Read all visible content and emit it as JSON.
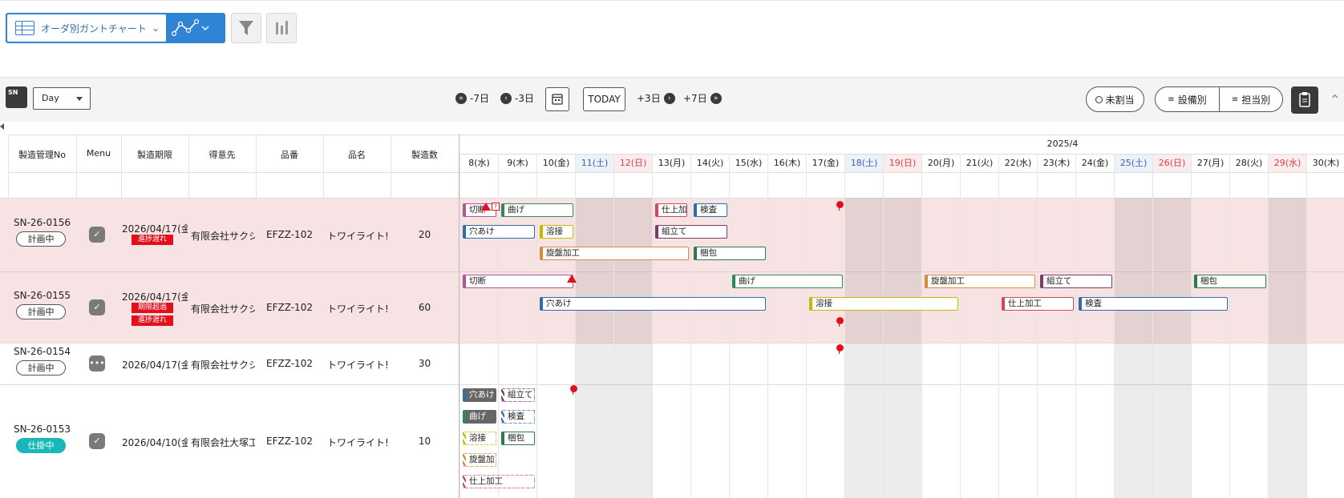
{
  "topbar": {
    "view_selector": {
      "label": "オーダ別ガントチャート",
      "icon": "table-icon"
    },
    "chart_type_icon": "line-chart-icon",
    "filter_icon": "filter-icon",
    "bar_chart_icon": "bar-chart-icon"
  },
  "toolbar": {
    "sn_button": "SN",
    "scale": "Day",
    "nav": {
      "back7": "-7日",
      "back3": "-3日",
      "today": "TODAY",
      "fwd3": "+3日",
      "fwd7": "+7日"
    },
    "unassigned": "未割当",
    "by_equipment": "設備別",
    "by_person": "担当別"
  },
  "table": {
    "headers": [
      "製造管理No",
      "Menu",
      "製造期限",
      "得意先",
      "品番",
      "品名",
      "製造数"
    ],
    "rows": [
      {
        "no": "SN-26-0156",
        "status": "計画中",
        "deadline": "2026/04/17(金",
        "tags": [
          "進捗遅れ"
        ],
        "customer": "有限会社サクシ",
        "part_no": "EFZZ-102",
        "part_name": "トワイライト!",
        "qty": "20",
        "menu": "check"
      },
      {
        "no": "SN-26-0155",
        "status": "計画中",
        "deadline": "2026/04/17(金",
        "tags": [
          "期限超過",
          "進捗遅れ"
        ],
        "customer": "有限会社サクシ",
        "part_no": "EFZZ-102",
        "part_name": "トワイライト!",
        "qty": "60",
        "menu": "check"
      },
      {
        "no": "SN-26-0154",
        "status": "計画中",
        "deadline": "2026/04/17(金",
        "tags": [],
        "customer": "有限会社サクシ",
        "part_no": "EFZZ-102",
        "part_name": "トワイライト!",
        "qty": "30",
        "menu": "more"
      },
      {
        "no": "SN-26-0153",
        "status": "仕掛中",
        "deadline": "2026/04/10(金",
        "tags": [],
        "customer": "有限会社大塚工",
        "part_no": "EFZZ-102",
        "part_name": "トワイライト!",
        "qty": "10",
        "menu": "check"
      }
    ]
  },
  "gantt": {
    "month": "2025/4",
    "days": [
      "8(水)",
      "9(木)",
      "10(金)",
      "11(土)",
      "12(日)",
      "13(月)",
      "14(火)",
      "15(水)",
      "16(木)",
      "17(金)",
      "18(土)",
      "19(日)",
      "20(月)",
      "21(火)",
      "22(水)",
      "23(木)",
      "24(金)",
      "25(土)",
      "26(日)",
      "27(月)",
      "28(火)",
      "29(水)",
      "30(木)"
    ],
    "day_kinds": [
      "w",
      "w",
      "w",
      "sat",
      "sun",
      "w",
      "w",
      "w",
      "w",
      "w",
      "sat",
      "sun",
      "w",
      "w",
      "w",
      "w",
      "w",
      "sat",
      "sun",
      "w",
      "w",
      "hol",
      "w"
    ],
    "colors": {
      "cut": "#b0559a",
      "bend": "#2e8a55",
      "drill": "#2f6fa8",
      "weld": "#c7b800",
      "lathe": "#d98a3a",
      "assemble": "#7a3a6e",
      "inspect": "#2f6fa8",
      "pack": "#2e7a4a",
      "finish": "#d04a5a",
      "overdue_row": "#f7e3e4",
      "holiday_col": "#ececec"
    },
    "bars": {
      "r0": [
        {
          "label": "切断",
          "op": "cut"
        },
        {
          "label": "曲げ",
          "op": "bend"
        },
        {
          "label": "仕上加",
          "op": "finish"
        },
        {
          "label": "検査",
          "op": "inspect"
        },
        {
          "label": "穴あけ",
          "op": "drill"
        },
        {
          "label": "溶接",
          "op": "weld"
        },
        {
          "label": "組立て",
          "op": "assemble"
        },
        {
          "label": "旋盤加工",
          "op": "lathe"
        },
        {
          "label": "梱包",
          "op": "pack"
        }
      ],
      "r1": [
        {
          "label": "切断",
          "op": "cut"
        },
        {
          "label": "曲げ",
          "op": "bend"
        },
        {
          "label": "旋盤加工",
          "op": "lathe"
        },
        {
          "label": "組立て",
          "op": "assemble"
        },
        {
          "label": "梱包",
          "op": "pack"
        },
        {
          "label": "穴あけ",
          "op": "drill"
        },
        {
          "label": "溶接",
          "op": "weld"
        },
        {
          "label": "仕上加工",
          "op": "finish"
        },
        {
          "label": "検査",
          "op": "inspect"
        }
      ],
      "r3": [
        {
          "label": "穴あけ",
          "op": "drill"
        },
        {
          "label": "組立て",
          "op": "assemble"
        },
        {
          "label": "曲げ",
          "op": "bend"
        },
        {
          "label": "検査",
          "op": "inspect"
        },
        {
          "label": "溶接",
          "op": "weld"
        },
        {
          "label": "梱包",
          "op": "pack"
        },
        {
          "label": "旋盤加",
          "op": "lathe"
        },
        {
          "label": "仕上加工",
          "op": "finish"
        }
      ]
    }
  }
}
